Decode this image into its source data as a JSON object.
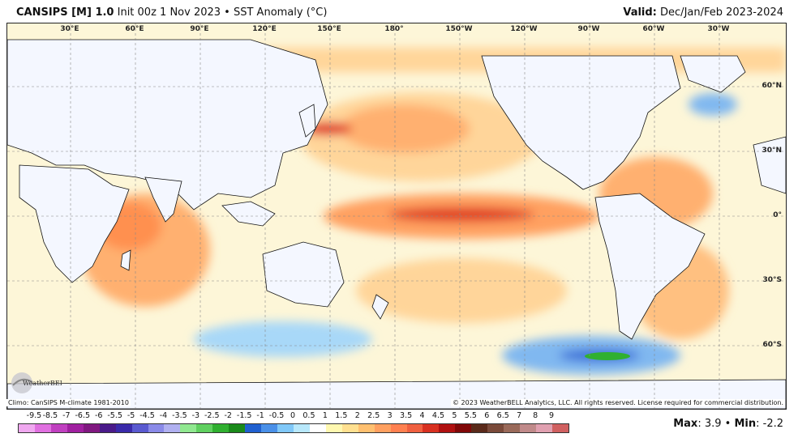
{
  "header": {
    "model": "CANSIPS [M] 1.0",
    "init": "Init 00z 1 Nov 2023",
    "bullet": "•",
    "field": "SST Anomaly (°C)",
    "valid_label": "Valid:",
    "valid_value": "Dec/Jan/Feb 2023-2024"
  },
  "longitude_labels": [
    "30°E",
    "60°E",
    "90°E",
    "120°E",
    "150°E",
    "180°",
    "150°W",
    "120°W",
    "90°W",
    "60°W",
    "30°W"
  ],
  "latitude_labels": [
    "60°N",
    "30°N",
    "0°",
    "30°S",
    "60°S"
  ],
  "footer": {
    "climo": "Climo: CanSIPS M-climate 1981-2010",
    "copyright": "© 2023 WeatherBELL Analytics, LLC. All rights reserved. License required for commercial distribution."
  },
  "colorbar": {
    "labels": [
      "-9.5",
      "-8.5",
      "-7",
      "-6.5",
      "-6",
      "-5.5",
      "-5",
      "-4.5",
      "-4",
      "-3.5",
      "-3",
      "-2.5",
      "-2",
      "-1.5",
      "-1",
      "-0.5",
      "0",
      "0.5",
      "1",
      "1.5",
      "2",
      "2.5",
      "3",
      "3.5",
      "4",
      "4.5",
      "5",
      "5.5",
      "6",
      "6.5",
      "7",
      "8",
      "9"
    ],
    "colors": [
      "#f0a8f0",
      "#e070e0",
      "#c040c0",
      "#a020a0",
      "#801880",
      "#4a1a8a",
      "#3a2aaa",
      "#5a5ad0",
      "#8a8ae8",
      "#b0b0f0",
      "#90e890",
      "#60d060",
      "#30b030",
      "#1a8a1a",
      "#2060d0",
      "#4a90e8",
      "#80c8f8",
      "#b8e8fb",
      "#ffffff",
      "#fff8b0",
      "#ffe090",
      "#ffc070",
      "#ffa060",
      "#ff8050",
      "#f06040",
      "#d83020",
      "#b01010",
      "#800808",
      "#5a2a1a",
      "#7a4a3a",
      "#9a6a5a",
      "#c08a8a",
      "#e0a0b0",
      "#d06060"
    ]
  },
  "stats": {
    "max_label": "Max",
    "max_value": ": 3.9",
    "sep": "•",
    "min_label": "Min",
    "min_value": ": -2.2"
  },
  "logo": {
    "text": "WeatherBELL"
  }
}
